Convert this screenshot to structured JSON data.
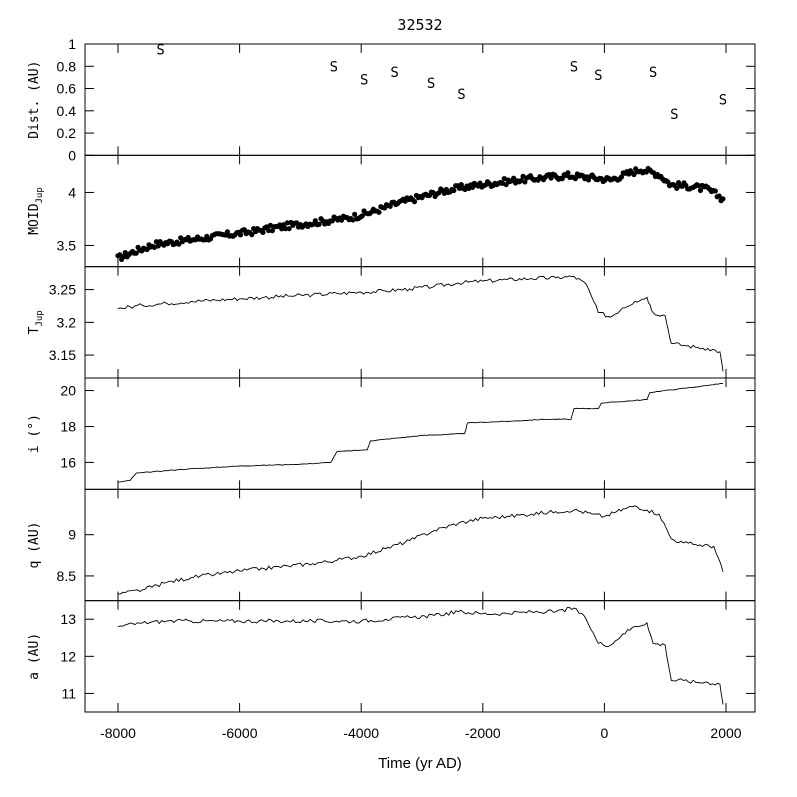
{
  "chart_data": {
    "type": "line",
    "title": "32532",
    "xlabel": "Time (yr AD)",
    "xlim": [
      -8000,
      2000
    ],
    "x_ticks": [
      -8000,
      -6000,
      -4000,
      -2000,
      0,
      2000
    ],
    "x_tick_labels": [
      "-8000",
      "-6000",
      "-4000",
      "-2000",
      "0",
      "2000"
    ],
    "panels": [
      {
        "id": "dist",
        "ylabel": "Dist. (AU)",
        "ylim": [
          0,
          1
        ],
        "y_ticks": [
          0,
          0.2,
          0.4,
          0.6,
          0.8,
          1
        ],
        "y_tick_labels": [
          "0",
          "0.2",
          "0.4",
          "0.6",
          "0.8",
          "1"
        ],
        "type": "scatter",
        "marker": "S",
        "points": [
          [
            -7300,
            0.95
          ],
          [
            -4450,
            0.8
          ],
          [
            -3950,
            0.68
          ],
          [
            -3450,
            0.75
          ],
          [
            -2850,
            0.65
          ],
          [
            -2350,
            0.55
          ],
          [
            -500,
            0.8
          ],
          [
            -100,
            0.72
          ],
          [
            800,
            0.75
          ],
          [
            1150,
            0.37
          ],
          [
            1950,
            0.5
          ]
        ]
      },
      {
        "id": "moid",
        "ylabel": "MOID",
        "ylabel_sub": "Jup",
        "ylim": [
          3.3,
          4.35
        ],
        "y_ticks": [
          3.5,
          4
        ],
        "y_tick_labels": [
          "3.5",
          "4"
        ],
        "type": "scatter",
        "marker": "dot",
        "points": [
          [
            -8000,
            3.38
          ],
          [
            -7700,
            3.45
          ],
          [
            -7400,
            3.51
          ],
          [
            -7000,
            3.54
          ],
          [
            -6600,
            3.57
          ],
          [
            -6200,
            3.6
          ],
          [
            -5800,
            3.63
          ],
          [
            -5400,
            3.67
          ],
          [
            -5000,
            3.7
          ],
          [
            -4600,
            3.73
          ],
          [
            -4200,
            3.76
          ],
          [
            -3800,
            3.82
          ],
          [
            -3400,
            3.9
          ],
          [
            -3000,
            3.96
          ],
          [
            -2600,
            4.02
          ],
          [
            -2200,
            4.06
          ],
          [
            -1800,
            4.09
          ],
          [
            -1400,
            4.12
          ],
          [
            -1000,
            4.14
          ],
          [
            -600,
            4.16
          ],
          [
            -200,
            4.14
          ],
          [
            100,
            4.12
          ],
          [
            400,
            4.18
          ],
          [
            600,
            4.22
          ],
          [
            900,
            4.17
          ],
          [
            1100,
            4.07
          ],
          [
            1400,
            4.06
          ],
          [
            1700,
            4.03
          ],
          [
            1950,
            3.94
          ]
        ]
      },
      {
        "id": "tjup",
        "ylabel": "T",
        "ylabel_sub": "Jup",
        "ylim": [
          3.115,
          3.285
        ],
        "y_ticks": [
          3.15,
          3.2,
          3.25
        ],
        "y_tick_labels": [
          "3.15",
          "3.2",
          "3.25"
        ],
        "type": "line",
        "points": [
          [
            -8000,
            3.221
          ],
          [
            -7600,
            3.226
          ],
          [
            -7200,
            3.229
          ],
          [
            -6800,
            3.232
          ],
          [
            -6400,
            3.234
          ],
          [
            -6000,
            3.236
          ],
          [
            -5600,
            3.238
          ],
          [
            -5200,
            3.24
          ],
          [
            -4800,
            3.242
          ],
          [
            -4400,
            3.244
          ],
          [
            -4000,
            3.246
          ],
          [
            -3600,
            3.248
          ],
          [
            -3200,
            3.251
          ],
          [
            -2800,
            3.255
          ],
          [
            -2400,
            3.26
          ],
          [
            -2000,
            3.263
          ],
          [
            -1600,
            3.265
          ],
          [
            -1200,
            3.267
          ],
          [
            -800,
            3.268
          ],
          [
            -500,
            3.27
          ],
          [
            -300,
            3.258
          ],
          [
            -100,
            3.215
          ],
          [
            100,
            3.208
          ],
          [
            300,
            3.222
          ],
          [
            500,
            3.232
          ],
          [
            700,
            3.238
          ],
          [
            800,
            3.215
          ],
          [
            1000,
            3.21
          ],
          [
            1100,
            3.168
          ],
          [
            1300,
            3.165
          ],
          [
            1500,
            3.162
          ],
          [
            1700,
            3.16
          ],
          [
            1900,
            3.155
          ],
          [
            1950,
            3.125
          ]
        ]
      },
      {
        "id": "incl",
        "ylabel": "i (°)",
        "ylim": [
          14.5,
          20.7
        ],
        "y_ticks": [
          16,
          18,
          20
        ],
        "y_tick_labels": [
          "16",
          "18",
          "20"
        ],
        "type": "line",
        "points": [
          [
            -8000,
            14.9
          ],
          [
            -7800,
            15.0
          ],
          [
            -7700,
            15.4
          ],
          [
            -7000,
            15.6
          ],
          [
            -6000,
            15.8
          ],
          [
            -5000,
            15.9
          ],
          [
            -4500,
            16.0
          ],
          [
            -4400,
            16.6
          ],
          [
            -3900,
            16.7
          ],
          [
            -3850,
            17.2
          ],
          [
            -3000,
            17.5
          ],
          [
            -2300,
            17.6
          ],
          [
            -2250,
            18.2
          ],
          [
            -1500,
            18.3
          ],
          [
            -1000,
            18.4
          ],
          [
            -550,
            18.4
          ],
          [
            -500,
            19.0
          ],
          [
            -100,
            19.0
          ],
          [
            -50,
            19.3
          ],
          [
            700,
            19.5
          ],
          [
            750,
            19.9
          ],
          [
            1500,
            20.2
          ],
          [
            1950,
            20.4
          ]
        ]
      },
      {
        "id": "q",
        "ylabel": "q (AU)",
        "ylim": [
          8.2,
          9.55
        ],
        "y_ticks": [
          8.5,
          9
        ],
        "y_tick_labels": [
          "8.5",
          "9"
        ],
        "type": "line",
        "points": [
          [
            -8000,
            8.28
          ],
          [
            -7600,
            8.33
          ],
          [
            -7200,
            8.42
          ],
          [
            -6800,
            8.48
          ],
          [
            -6400,
            8.52
          ],
          [
            -6000,
            8.56
          ],
          [
            -5600,
            8.59
          ],
          [
            -5200,
            8.62
          ],
          [
            -4800,
            8.65
          ],
          [
            -4400,
            8.69
          ],
          [
            -4000,
            8.74
          ],
          [
            -3600,
            8.83
          ],
          [
            -3200,
            8.93
          ],
          [
            -2800,
            9.05
          ],
          [
            -2400,
            9.14
          ],
          [
            -2000,
            9.2
          ],
          [
            -1600,
            9.22
          ],
          [
            -1200,
            9.25
          ],
          [
            -800,
            9.28
          ],
          [
            -500,
            9.3
          ],
          [
            -200,
            9.25
          ],
          [
            0,
            9.22
          ],
          [
            200,
            9.28
          ],
          [
            500,
            9.35
          ],
          [
            700,
            9.3
          ],
          [
            900,
            9.25
          ],
          [
            1100,
            8.95
          ],
          [
            1300,
            8.9
          ],
          [
            1500,
            8.88
          ],
          [
            1800,
            8.86
          ],
          [
            1950,
            8.55
          ]
        ]
      },
      {
        "id": "a",
        "ylabel": "a (AU)",
        "ylim": [
          10.5,
          13.5
        ],
        "y_ticks": [
          11,
          12,
          13
        ],
        "y_tick_labels": [
          "11",
          "12",
          "13"
        ],
        "type": "line",
        "points": [
          [
            -8000,
            12.8
          ],
          [
            -7600,
            12.9
          ],
          [
            -7200,
            12.95
          ],
          [
            -6800,
            12.95
          ],
          [
            -6400,
            12.95
          ],
          [
            -6000,
            12.95
          ],
          [
            -5600,
            12.95
          ],
          [
            -5200,
            12.95
          ],
          [
            -4800,
            12.95
          ],
          [
            -4400,
            12.95
          ],
          [
            -4000,
            12.95
          ],
          [
            -3600,
            13.0
          ],
          [
            -3200,
            13.05
          ],
          [
            -2800,
            13.1
          ],
          [
            -2400,
            13.2
          ],
          [
            -2000,
            13.15
          ],
          [
            -1600,
            13.15
          ],
          [
            -1200,
            13.2
          ],
          [
            -800,
            13.2
          ],
          [
            -500,
            13.3
          ],
          [
            -300,
            13.0
          ],
          [
            -100,
            12.35
          ],
          [
            100,
            12.3
          ],
          [
            300,
            12.6
          ],
          [
            500,
            12.8
          ],
          [
            700,
            12.9
          ],
          [
            800,
            12.35
          ],
          [
            1000,
            12.3
          ],
          [
            1100,
            11.35
          ],
          [
            1300,
            11.35
          ],
          [
            1500,
            11.3
          ],
          [
            1700,
            11.3
          ],
          [
            1900,
            11.25
          ],
          [
            1950,
            10.7
          ]
        ]
      }
    ]
  }
}
